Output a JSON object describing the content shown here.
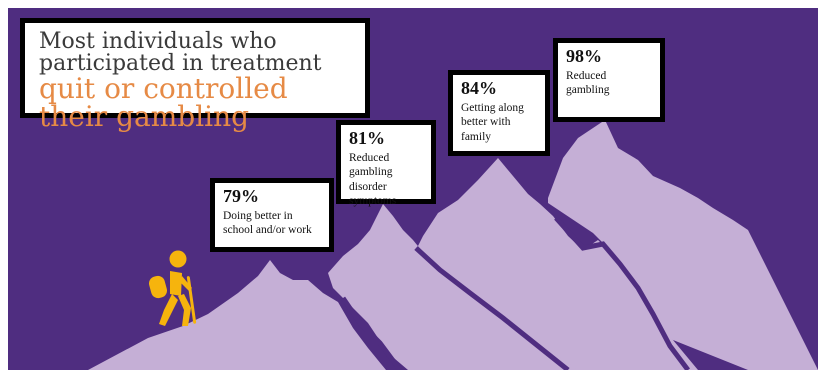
{
  "title": {
    "lead": "Most individuals who participated in treatment",
    "accent": "quit or controlled their gambling"
  },
  "stats": [
    {
      "percent": "79%",
      "description": "Doing better in school and/or work"
    },
    {
      "percent": "81%",
      "description": "Reduced gambling disorder symptoms"
    },
    {
      "percent": "84%",
      "description": "Getting along better with family"
    },
    {
      "percent": "98%",
      "description": "Reduced gambling"
    }
  ],
  "colors": {
    "background": "#4f2d80",
    "mountain": "#c5afd6",
    "accent": "#e68a45",
    "hiker": "#f6b40d"
  },
  "icons": [
    "hiker-icon"
  ]
}
